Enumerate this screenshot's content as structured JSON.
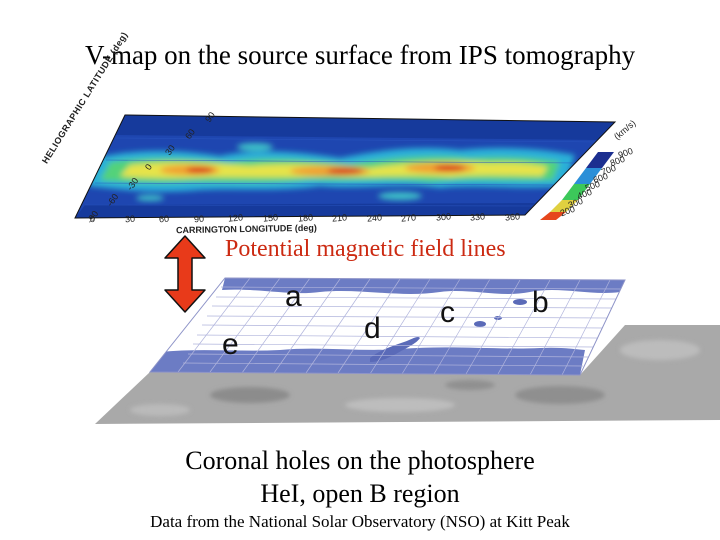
{
  "title": "V-map on the source surface from IPS tomography",
  "vmap": {
    "y_axis_label": "HELIOGRAPHIC LATITUDE (deg)",
    "y_ticks": [
      "90",
      "60",
      "30",
      "0",
      "-30",
      "-60",
      "-90"
    ],
    "x_axis_label": "CARRINGTON LONGITUDE (deg)",
    "x_ticks": [
      "0",
      "30",
      "60",
      "90",
      "120",
      "150",
      "180",
      "210",
      "240",
      "270",
      "300",
      "330",
      "360"
    ],
    "colorbar_unit": "(km/s)",
    "colorbar_ticks": [
      "900",
      "800",
      "700",
      "600",
      "500",
      "400",
      "300",
      "200"
    ]
  },
  "field_lines_label": "Potential magnetic field lines",
  "photosphere": {
    "region_labels": [
      "a",
      "b",
      "c",
      "d",
      "e"
    ]
  },
  "captions": {
    "line1": "Coronal holes on the photosphere",
    "line2": "HeΙ, open B region",
    "line3": "Data from  the National Solar Observatory (NSO) at Kitt Peak"
  },
  "colors": {
    "arrow": "#e83a1a",
    "label_red": "#cc2a12",
    "map_blue": "#1e46b0",
    "field_lines": "#9ea2d8",
    "photosphere_gray": "#a9a9a9"
  }
}
